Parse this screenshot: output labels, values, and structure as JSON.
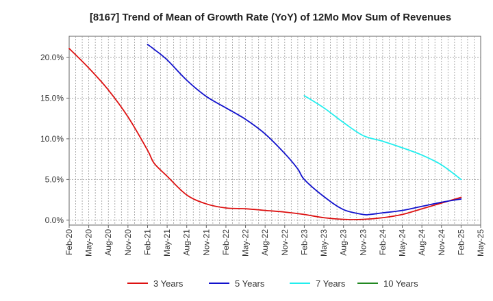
{
  "chart_data": {
    "type": "line",
    "title": "[8167]  Trend of Mean of Growth Rate (YoY) of 12Mo Mov Sum of Revenues",
    "xlabel": "",
    "ylabel": "",
    "ylim": [
      -0.6,
      22.6
    ],
    "x_ticks": [
      "Feb-20",
      "May-20",
      "Aug-20",
      "Nov-20",
      "Feb-21",
      "May-21",
      "Aug-21",
      "Nov-21",
      "Feb-22",
      "May-22",
      "Aug-22",
      "Nov-22",
      "Feb-23",
      "May-23",
      "Aug-23",
      "Nov-23",
      "Feb-24",
      "May-24",
      "Aug-24",
      "Nov-24",
      "Feb-25",
      "May-25"
    ],
    "y_ticks": [
      {
        "value": 0,
        "label": "0.0%"
      },
      {
        "value": 5,
        "label": "5.0%"
      },
      {
        "value": 10,
        "label": "10.0%"
      },
      {
        "value": 15,
        "label": "15.0%"
      },
      {
        "value": 20,
        "label": "20.0%"
      }
    ],
    "grid": true,
    "legend_position": "bottom",
    "series": [
      {
        "name": "3 Years",
        "color": "#dd1111",
        "x": [
          "Feb-20",
          "May-20",
          "Aug-20",
          "Nov-20",
          "Feb-21",
          "Mar-21",
          "May-21",
          "Aug-21",
          "Nov-21",
          "Feb-22",
          "May-22",
          "Aug-22",
          "Nov-22",
          "Feb-23",
          "May-23",
          "Aug-23",
          "Nov-23",
          "Feb-24",
          "May-24",
          "Aug-24",
          "Nov-24",
          "Feb-25"
        ],
        "values": [
          21.1,
          18.7,
          16.0,
          12.7,
          8.6,
          7.0,
          5.4,
          3.1,
          2.0,
          1.5,
          1.4,
          1.2,
          1.0,
          0.7,
          0.3,
          0.1,
          0.1,
          0.3,
          0.7,
          1.4,
          2.1,
          2.8
        ]
      },
      {
        "name": "5 Years",
        "color": "#1111cc",
        "x": [
          "Feb-21",
          "Mar-21",
          "May-21",
          "Aug-21",
          "Nov-21",
          "Feb-22",
          "May-22",
          "Aug-22",
          "Nov-22",
          "Jan-23",
          "Feb-23",
          "May-23",
          "Aug-23",
          "Nov-23",
          "Dec-23",
          "Feb-24",
          "May-24",
          "Aug-24",
          "Nov-24",
          "Feb-25"
        ],
        "values": [
          21.6,
          21.0,
          19.7,
          17.2,
          15.2,
          13.8,
          12.4,
          10.6,
          8.2,
          6.3,
          5.0,
          2.9,
          1.3,
          0.7,
          0.7,
          0.9,
          1.2,
          1.7,
          2.2,
          2.6
        ]
      },
      {
        "name": "7 Years",
        "color": "#22eeee",
        "x": [
          "Feb-23",
          "May-23",
          "Aug-23",
          "Nov-23",
          "Feb-24",
          "May-24",
          "Aug-24",
          "Nov-24",
          "Feb-25"
        ],
        "values": [
          15.3,
          13.8,
          12.0,
          10.4,
          9.7,
          8.9,
          8.0,
          6.8,
          5.0
        ]
      },
      {
        "name": "10 Years",
        "color": "#228822",
        "x": [],
        "values": []
      }
    ]
  }
}
